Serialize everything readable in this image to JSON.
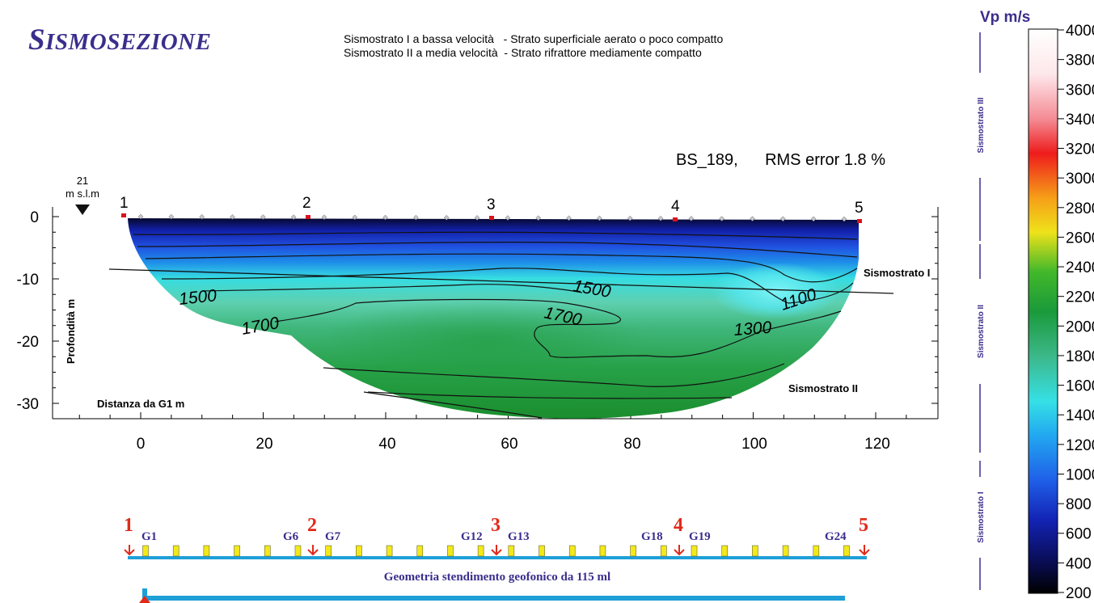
{
  "header": {
    "title_first": "S",
    "title_rest": "ISMOSEZIONE",
    "legend_line_1": "Sismostrato I a bassa velocità   - Strato superficiale aerato o poco compatto",
    "legend_line_2": "Sismostrato II a media velocità  - Strato rifrattore mediamente compatto",
    "rms_label": "BS_189,      RMS error 1.8 %"
  },
  "section": {
    "elevation_value": "21",
    "elevation_unit": "m s.l.m",
    "y_axis_label": "Profondità  m",
    "x_axis_label": "Distanza da G1   m",
    "x_ticks": [
      "0",
      "20",
      "40",
      "60",
      "80",
      "100",
      "120"
    ],
    "y_ticks": [
      "0",
      "-10",
      "-20",
      "-30"
    ],
    "shot_points": [
      "1",
      "2",
      "3",
      "4",
      "5"
    ],
    "layer_labels": {
      "upper": "Sismostrato I",
      "lower": "Sismostrato II"
    },
    "contour_labels": [
      "1500",
      "1700",
      "1500",
      "1700",
      "1300",
      "1100"
    ]
  },
  "geometry": {
    "caption": "Geometria stendimento geofonico da 115 ml",
    "shot_numbers": [
      "1",
      "2",
      "3",
      "4",
      "5"
    ],
    "geophone_labels": [
      "G1",
      "G6",
      "G7",
      "G12",
      "G13",
      "G18",
      "G19",
      "G24"
    ],
    "geophone_count": 24
  },
  "colorbar": {
    "title": "Vp   m/s",
    "ticks": [
      "4000",
      "3800",
      "3600",
      "3400",
      "3200",
      "3000",
      "2800",
      "2600",
      "2400",
      "2200",
      "2000",
      "1800",
      "1600",
      "1400",
      "1200",
      "1000",
      "800",
      "600",
      "400",
      "200"
    ],
    "vertical_labels": [
      "Sismostrato III",
      "Sismostrato II",
      "Sismostrato I"
    ]
  }
}
